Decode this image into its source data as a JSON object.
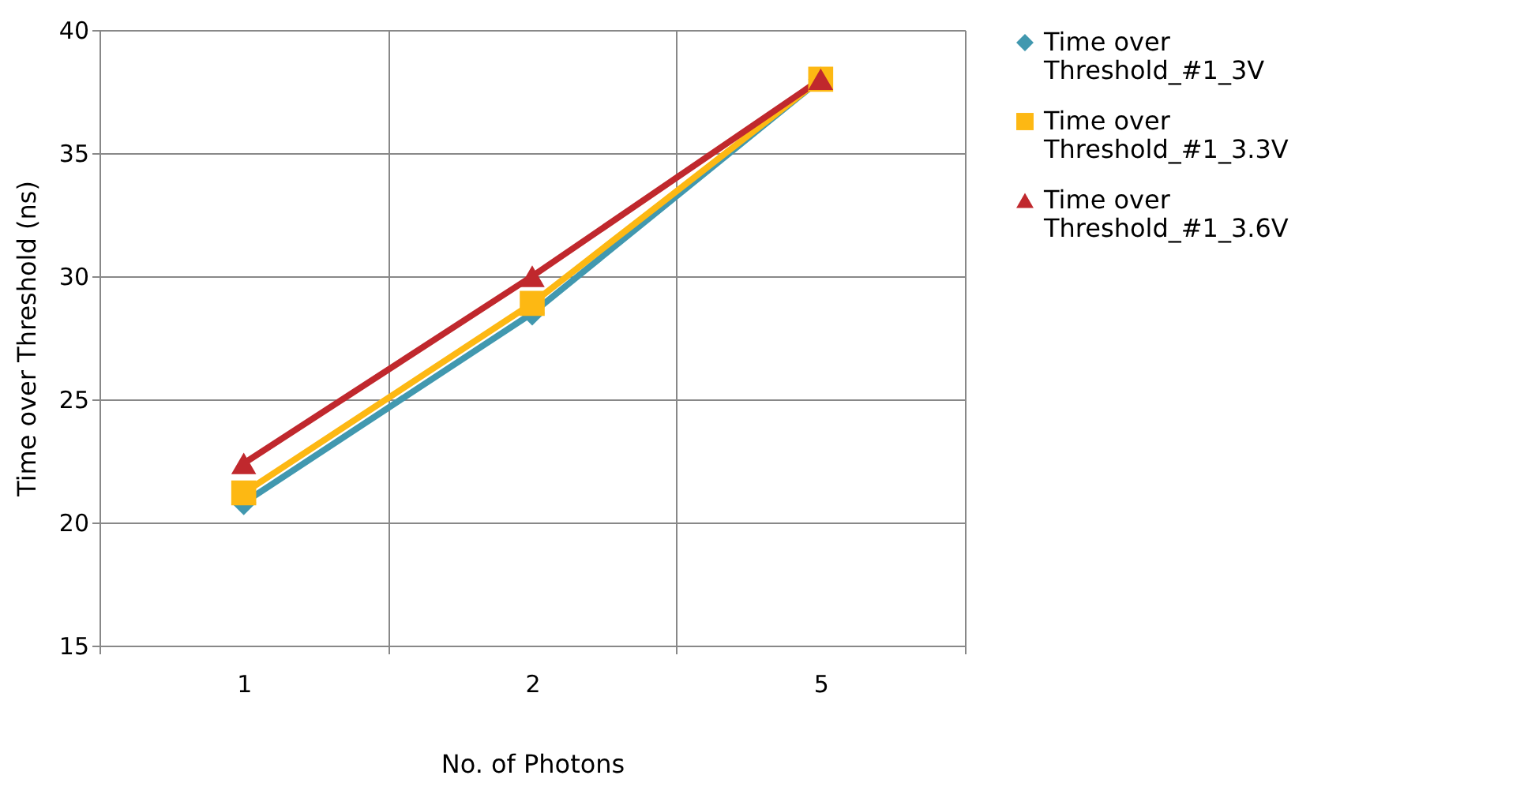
{
  "chart_data": {
    "type": "line",
    "xlabel": "No. of Photons",
    "ylabel": "Time over Threshold (ns)",
    "categories": [
      "1",
      "2",
      "5"
    ],
    "series": [
      {
        "name": "Time over Threshold_#1_3V",
        "color": "#4198af",
        "marker": "diamond",
        "values": [
          20.8,
          28.5,
          38
        ]
      },
      {
        "name": "Time over Threshold_#1_3.3V",
        "color": "#fdb813",
        "marker": "square",
        "values": [
          21.2,
          28.9,
          38
        ]
      },
      {
        "name": "Time over Threshold_#1_3.6V",
        "color": "#c0282d",
        "marker": "triangle",
        "values": [
          22.4,
          30.0,
          38
        ]
      }
    ],
    "ylim": [
      15,
      40
    ],
    "yticks": [
      15,
      20,
      25,
      30,
      35,
      40
    ],
    "grid": true,
    "legend": "right",
    "line_style": "solid"
  }
}
